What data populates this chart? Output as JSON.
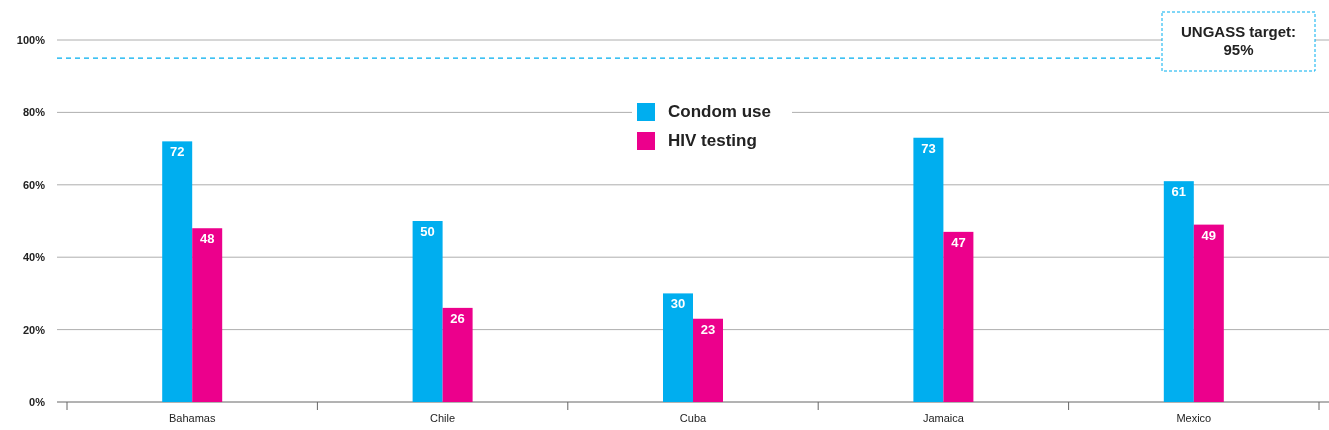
{
  "chart_data": {
    "type": "bar",
    "categories": [
      "Bahamas",
      "Chile",
      "Cuba",
      "Jamaica",
      "Mexico"
    ],
    "series": [
      {
        "name": "Condom use",
        "color": "#00aeef",
        "values": [
          72,
          50,
          30,
          73,
          61
        ]
      },
      {
        "name": "HIV testing",
        "color": "#ec008c",
        "values": [
          48,
          26,
          23,
          47,
          49
        ]
      }
    ],
    "ylim": [
      0,
      100
    ],
    "yticks": [
      {
        "value": 0,
        "label": "0%"
      },
      {
        "value": 20,
        "label": "20%"
      },
      {
        "value": 40,
        "label": "40%"
      },
      {
        "value": 60,
        "label": "60%"
      },
      {
        "value": 80,
        "label": "80%"
      },
      {
        "value": 100,
        "label": "100%"
      }
    ],
    "grid": "y",
    "legend": "top",
    "data_labels": true,
    "ref_lines": [
      {
        "axis": "y",
        "value": 95,
        "label": "UNGASS target: 95%",
        "color": "#00aeef",
        "line_style": "dashed"
      }
    ]
  }
}
